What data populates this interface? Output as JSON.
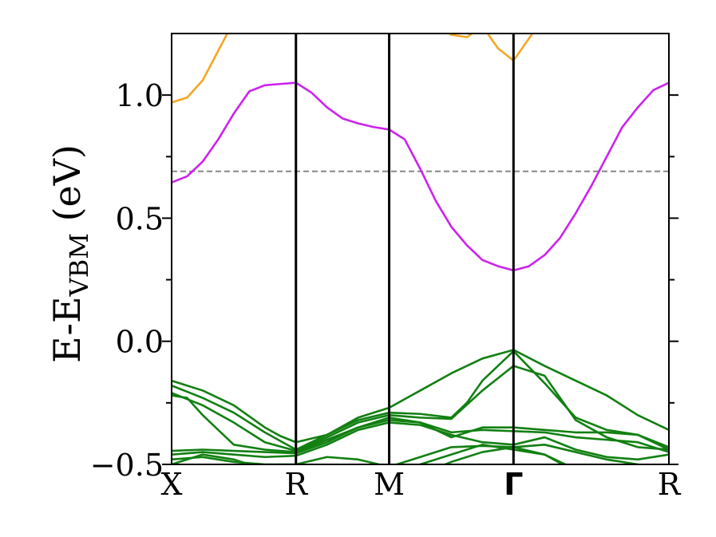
{
  "chart_data": {
    "type": "line",
    "ylabel": {
      "main": "E-E",
      "sub": "VBM",
      "unit": " (eV)"
    },
    "ylim": [
      -0.5,
      1.25
    ],
    "yticks": [
      {
        "value": -0.5,
        "label": "−0.5"
      },
      {
        "value": 0.0,
        "label": "0.0"
      },
      {
        "value": 0.5,
        "label": "0.5"
      },
      {
        "value": 1.0,
        "label": "1.0"
      }
    ],
    "ticks_minor": [
      -0.25,
      0.25,
      0.75
    ],
    "kpath": [
      {
        "label": "X",
        "pos": 0
      },
      {
        "label": "R",
        "pos": 8
      },
      {
        "label": "M",
        "pos": 14
      },
      {
        "label": "Γ",
        "pos": 22
      },
      {
        "label": "R",
        "pos": 32
      }
    ],
    "reference_line": {
      "y": 0.69,
      "style": "dashed",
      "color": "#888888"
    },
    "colors": {
      "conduction_upper": "#f5a623",
      "conduction": "#cc22ee",
      "valence": "#118011",
      "kpath_line": "#000000"
    },
    "series": [
      {
        "group": "conduction",
        "color": "#cc22ee",
        "x": [
          0,
          1,
          2,
          3,
          4,
          5,
          6,
          7,
          8,
          9,
          10,
          11,
          12,
          13,
          14,
          15,
          16,
          17,
          18,
          19,
          20,
          21,
          22,
          23,
          24,
          25,
          26,
          27,
          28,
          29,
          30,
          31,
          32
        ],
        "y": [
          0.645,
          0.67,
          0.73,
          0.82,
          0.925,
          1.015,
          1.04,
          1.045,
          1.05,
          1.01,
          0.95,
          0.905,
          0.885,
          0.87,
          0.86,
          0.82,
          0.7,
          0.57,
          0.465,
          0.39,
          0.33,
          0.305,
          0.288,
          0.305,
          0.35,
          0.42,
          0.52,
          0.63,
          0.75,
          0.87,
          0.95,
          1.02,
          1.05
        ]
      },
      {
        "group": "conduction_upper",
        "color": "#f5a623",
        "x": [
          0,
          1,
          2,
          3,
          4,
          5
        ],
        "y": [
          0.97,
          0.99,
          1.06,
          1.18,
          1.3,
          1.45
        ]
      },
      {
        "group": "conduction_upper",
        "color": "#f5a623",
        "x": [
          17,
          18,
          19,
          20,
          21,
          22,
          23,
          24
        ],
        "y": [
          1.28,
          1.245,
          1.235,
          1.28,
          1.19,
          1.14,
          1.23,
          1.32
        ]
      },
      {
        "group": "valence",
        "color": "#118011",
        "x": [
          0,
          2,
          4,
          6,
          7,
          8,
          10,
          12,
          14,
          16,
          18,
          20,
          22,
          24,
          26,
          28,
          30,
          32
        ],
        "y": [
          -0.16,
          -0.2,
          -0.26,
          -0.35,
          -0.385,
          -0.41,
          -0.38,
          -0.31,
          -0.27,
          -0.2,
          -0.13,
          -0.07,
          -0.035,
          -0.1,
          -0.16,
          -0.22,
          -0.3,
          -0.36
        ]
      },
      {
        "group": "valence",
        "color": "#118011",
        "x": [
          0,
          2,
          4,
          6,
          8,
          10,
          12,
          14,
          16,
          18,
          19,
          20,
          22,
          24,
          26,
          28,
          30,
          32
        ],
        "y": [
          -0.18,
          -0.23,
          -0.29,
          -0.37,
          -0.44,
          -0.38,
          -0.32,
          -0.29,
          -0.295,
          -0.31,
          -0.25,
          -0.16,
          -0.04,
          -0.17,
          -0.31,
          -0.36,
          -0.38,
          -0.44
        ]
      },
      {
        "group": "valence",
        "color": "#118011",
        "x": [
          0,
          2,
          4,
          6,
          8,
          10,
          12,
          14,
          16,
          18,
          20,
          22,
          24,
          26,
          28,
          30,
          32
        ],
        "y": [
          -0.21,
          -0.26,
          -0.33,
          -0.41,
          -0.445,
          -0.39,
          -0.33,
          -0.3,
          -0.31,
          -0.315,
          -0.2,
          -0.1,
          -0.14,
          -0.32,
          -0.39,
          -0.43,
          -0.44
        ]
      },
      {
        "group": "valence",
        "color": "#118011",
        "x": [
          0,
          1,
          2,
          4,
          6,
          8,
          10,
          12,
          14,
          16,
          18,
          20,
          22,
          24,
          26,
          28,
          30,
          32
        ],
        "y": [
          -0.22,
          -0.23,
          -0.3,
          -0.42,
          -0.44,
          -0.45,
          -0.4,
          -0.35,
          -0.31,
          -0.33,
          -0.39,
          -0.35,
          -0.35,
          -0.36,
          -0.37,
          -0.37,
          -0.38,
          -0.43
        ]
      },
      {
        "group": "valence",
        "color": "#118011",
        "x": [
          0,
          2,
          4,
          6,
          8,
          10,
          12,
          14,
          16,
          18,
          20,
          22,
          24,
          26,
          28,
          30,
          32
        ],
        "y": [
          -0.445,
          -0.44,
          -0.445,
          -0.45,
          -0.455,
          -0.41,
          -0.35,
          -0.32,
          -0.33,
          -0.37,
          -0.36,
          -0.365,
          -0.37,
          -0.39,
          -0.4,
          -0.41,
          -0.45
        ]
      },
      {
        "group": "valence",
        "color": "#118011",
        "x": [
          0,
          2,
          4,
          6,
          8,
          10,
          12,
          14,
          16,
          18,
          20,
          22,
          24,
          26,
          28,
          30,
          32
        ],
        "y": [
          -0.46,
          -0.45,
          -0.46,
          -0.47,
          -0.465,
          -0.42,
          -0.36,
          -0.33,
          -0.34,
          -0.38,
          -0.41,
          -0.42,
          -0.39,
          -0.44,
          -0.47,
          -0.48,
          -0.46
        ]
      },
      {
        "group": "valence",
        "color": "#118011",
        "x": [
          0,
          2,
          4,
          6,
          8,
          10,
          12,
          14,
          16,
          18,
          20,
          22,
          24,
          26,
          28,
          30,
          32
        ],
        "y": [
          -0.48,
          -0.47,
          -0.49,
          -0.5,
          -0.5,
          -0.47,
          -0.48,
          -0.51,
          -0.47,
          -0.43,
          -0.425,
          -0.43,
          -0.42,
          -0.45,
          -0.48,
          -0.5,
          -0.52
        ]
      },
      {
        "group": "valence",
        "color": "#118011",
        "x": [
          0,
          2,
          4,
          6,
          8,
          10,
          12,
          14,
          16,
          18,
          20,
          22,
          24,
          26
        ],
        "y": [
          -0.5,
          -0.46,
          -0.48,
          -0.52,
          -0.53,
          -0.55,
          -0.55,
          -0.55,
          -0.5,
          -0.46,
          -0.42,
          -0.44,
          -0.46,
          -0.53
        ]
      },
      {
        "group": "valence",
        "color": "#118011",
        "x": [
          14,
          16,
          18,
          20,
          22,
          24,
          26,
          28
        ],
        "y": [
          -0.58,
          -0.54,
          -0.49,
          -0.45,
          -0.43,
          -0.46,
          -0.52,
          -0.6
        ]
      }
    ]
  }
}
